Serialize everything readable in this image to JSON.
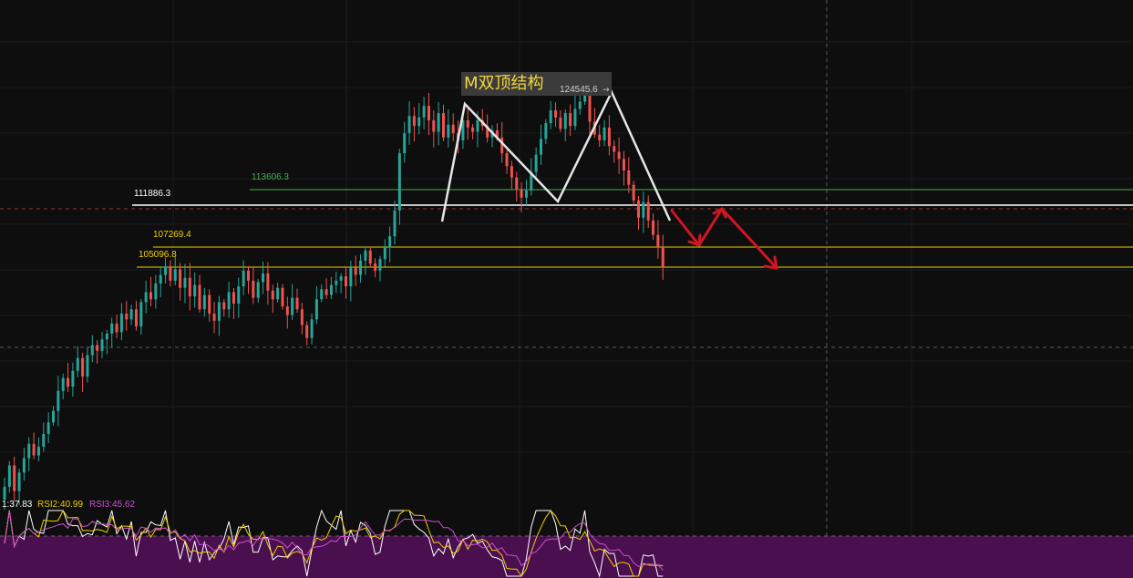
{
  "chart_data": {
    "type": "candlestick",
    "annotation_title": "M双顶结构",
    "peak_label": "124545.6",
    "levels": [
      {
        "value": "113606.3",
        "color": "#4caf50"
      },
      {
        "value": "111886.3",
        "color": "#ffffff"
      },
      {
        "value": "107269.4",
        "color": "#f0d000"
      },
      {
        "value": "105096.8",
        "color": "#f0d000"
      }
    ],
    "rsi_labels": [
      {
        "text": "1:37.83",
        "color": "#ffffff"
      },
      {
        "text": "RSI2:40.99",
        "color": "#f0d000"
      },
      {
        "text": "RSI3:45.62",
        "color": "#d050d0"
      }
    ],
    "colors": {
      "up": "#26a69a",
      "down": "#ef5350",
      "pattern": "#e6e6e6",
      "projection": "#d01622",
      "rsi_bg": "#4a0f4e"
    },
    "price_range": [
      95800,
      127000
    ],
    "closes": [
      96500,
      98000,
      96200,
      97500,
      98500,
      99500,
      98700,
      99300,
      100200,
      101000,
      101800,
      103200,
      104100,
      103500,
      104600,
      105500,
      104200,
      105700,
      106400,
      106000,
      106800,
      107200,
      107900,
      107300,
      108600,
      108200,
      108900,
      107700,
      109400,
      110100,
      109600,
      110700,
      111300,
      111900,
      110900,
      111700,
      110400,
      111100,
      109800,
      110600,
      108900,
      109900,
      108600,
      108100,
      109400,
      108900,
      110100,
      109300,
      110500,
      111600,
      110900,
      109700,
      110800,
      111400,
      110200,
      109600,
      110400,
      109100,
      108500,
      109700,
      108900,
      107800,
      106900,
      108200,
      109600,
      110300,
      109900,
      110600,
      110900,
      111200,
      110500,
      111800,
      111300,
      112300,
      113000,
      112100,
      111600,
      112400,
      113200,
      114000,
      115800,
      119800,
      121200,
      122400,
      121700,
      122300,
      123100,
      122100,
      121300,
      122600,
      120900,
      121800,
      121200,
      120700,
      122100,
      121600,
      121300,
      122100,
      121700,
      120900,
      121400,
      120900,
      119800,
      118900,
      118100,
      117300,
      116700,
      117200,
      118500,
      119700,
      120800,
      121900,
      122800,
      122300,
      121500,
      122600,
      121700,
      122900,
      123400,
      124200,
      122000,
      121100,
      120700,
      121600,
      120300,
      119900,
      119400,
      118600,
      117600,
      116500,
      115300,
      116400,
      115100,
      114100,
      113200,
      111800
    ]
  }
}
